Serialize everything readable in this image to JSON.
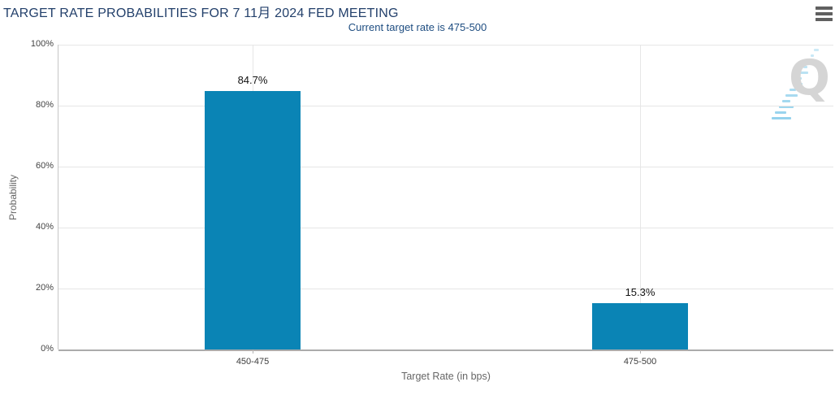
{
  "chart_data": {
    "type": "bar",
    "title": "TARGET RATE PROBABILITIES FOR 7 11月 2024 FED MEETING",
    "subtitle": "Current target rate is 475-500",
    "categories": [
      "450-475",
      "475-500"
    ],
    "values": [
      84.7,
      15.3
    ],
    "value_labels": [
      "84.7%",
      "15.3%"
    ],
    "xlabel": "Target Rate (in bps)",
    "ylabel": "Probability",
    "ylim": [
      0,
      100
    ],
    "yticks": [
      0,
      20,
      40,
      60,
      80,
      100
    ],
    "ytick_labels": [
      "0%",
      "20%",
      "40%",
      "60%",
      "80%",
      "100%"
    ],
    "grid": true,
    "legend": "none",
    "bar_color": "#0a84b5"
  },
  "menu": {
    "icon": "hamburger-icon"
  },
  "watermark": {
    "letter": "Q"
  },
  "colors": {
    "title": "#23406b",
    "subtitle": "#1e4d81",
    "bar": "#0a84b5",
    "axis_line": "#ababab",
    "gridline": "#e6e6e6",
    "tick_label": "#444444",
    "axis_title": "#666666"
  }
}
